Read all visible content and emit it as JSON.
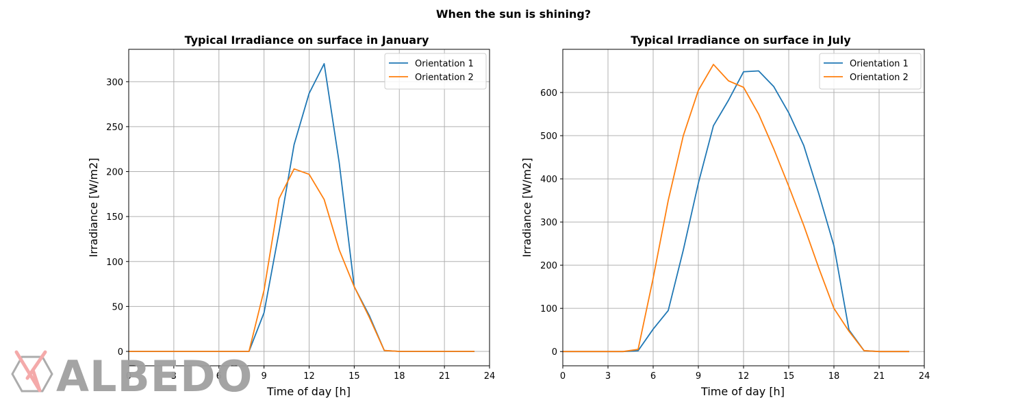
{
  "suptitle": "When the sun is shining?",
  "watermark": {
    "text": "ALBEDO",
    "color": "#9e9e9e",
    "accent_color": "#f4a6a6"
  },
  "colors": {
    "series1": "#1f77b4",
    "series2": "#ff7f0e",
    "grid": "#b0b0b0",
    "axis": "#000000"
  },
  "chart_data": [
    {
      "type": "line",
      "title": "Typical Irradiance on surface in January",
      "xlabel": "Time of day [h]",
      "ylabel": "Irradiance [W/m2]",
      "xlim": [
        0,
        24
      ],
      "ylim": [
        -16,
        336
      ],
      "xticks": [
        0,
        3,
        6,
        9,
        12,
        15,
        18,
        21,
        24
      ],
      "yticks": [
        0,
        50,
        100,
        150,
        200,
        250,
        300
      ],
      "grid": true,
      "legend": "top-right",
      "x": [
        0,
        1,
        2,
        3,
        4,
        5,
        6,
        7,
        8,
        9,
        10,
        11,
        12,
        13,
        14,
        15,
        16,
        17,
        18,
        19,
        20,
        21,
        22,
        23
      ],
      "series": [
        {
          "name": "Orientation 1",
          "values": [
            0,
            0,
            0,
            0,
            0,
            0,
            0,
            0,
            0,
            43,
            133,
            230,
            287,
            320,
            210,
            72,
            40,
            1,
            0,
            0,
            0,
            0,
            0,
            0
          ]
        },
        {
          "name": "Orientation 2",
          "values": [
            0,
            0,
            0,
            0,
            0,
            0,
            0,
            0,
            0,
            68,
            170,
            203,
            197,
            169,
            113,
            72,
            38,
            1,
            0,
            0,
            0,
            0,
            0,
            0
          ]
        }
      ]
    },
    {
      "type": "line",
      "title": "Typical Irradiance on surface in July",
      "xlabel": "Time of day [h]",
      "ylabel": "Irradiance [W/m2]",
      "xlim": [
        0,
        24
      ],
      "ylim": [
        -33,
        700
      ],
      "xticks": [
        0,
        3,
        6,
        9,
        12,
        15,
        18,
        21,
        24
      ],
      "yticks": [
        0,
        100,
        200,
        300,
        400,
        500,
        600
      ],
      "grid": true,
      "legend": "top-right",
      "x": [
        0,
        1,
        2,
        3,
        4,
        5,
        6,
        7,
        8,
        9,
        10,
        11,
        12,
        13,
        14,
        15,
        16,
        17,
        18,
        19,
        20,
        21,
        22,
        23
      ],
      "series": [
        {
          "name": "Orientation 1",
          "values": [
            0,
            0,
            0,
            0,
            0,
            2,
            52,
            95,
            235,
            390,
            523,
            582,
            648,
            650,
            614,
            553,
            477,
            365,
            245,
            50,
            2,
            0,
            0,
            0
          ]
        },
        {
          "name": "Orientation 2",
          "values": [
            0,
            0,
            0,
            0,
            0,
            5,
            170,
            350,
            500,
            605,
            665,
            627,
            612,
            550,
            470,
            383,
            292,
            193,
            100,
            47,
            2,
            0,
            0,
            0
          ]
        }
      ]
    }
  ]
}
